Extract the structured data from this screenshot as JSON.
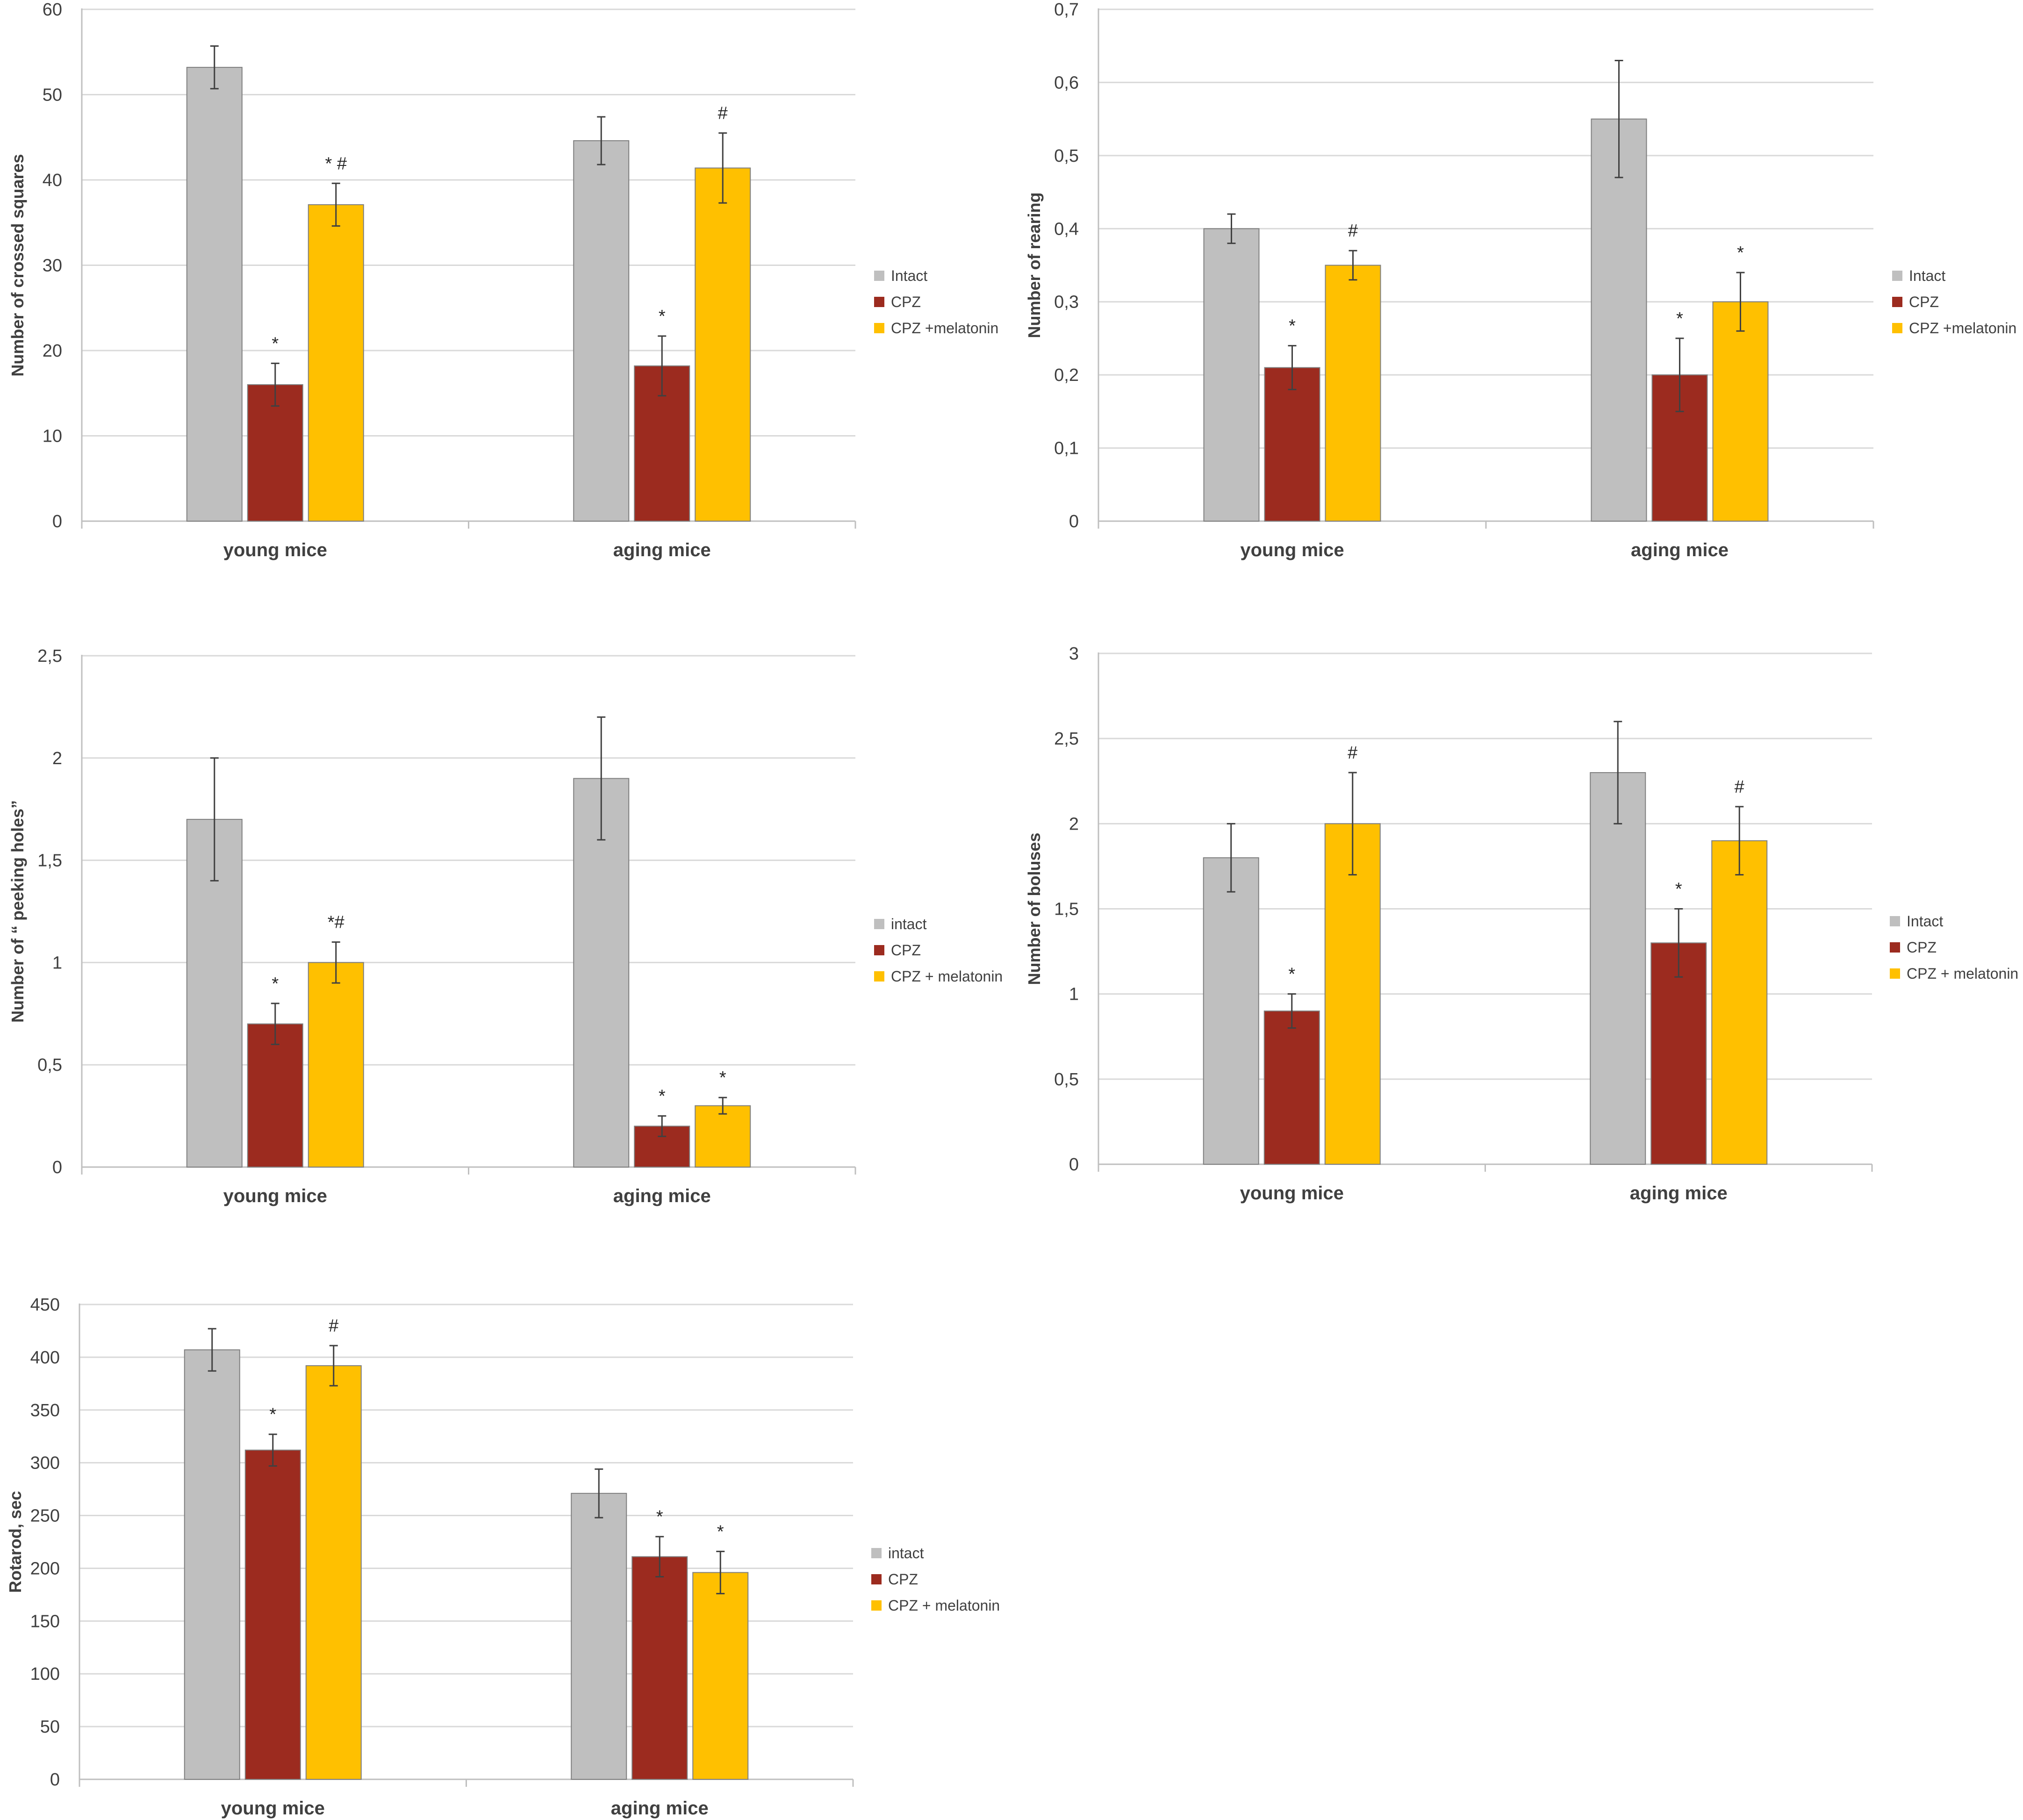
{
  "colors": {
    "intact": "#bfbfbf",
    "cpz": "#9c2b1f",
    "melatonin": "#ffc000",
    "grid": "#d9d9d9",
    "axis": "#bfbfbf",
    "bar_edge": "#7f7f7f",
    "error": "#404040"
  },
  "chart_data": [
    {
      "type": "bar",
      "ylabel": "Number of crossed squares",
      "ylim": [
        0,
        60
      ],
      "yticks": [
        "0",
        "10",
        "20",
        "30",
        "40",
        "50",
        "60"
      ],
      "categories": [
        "young mice",
        "aging mice"
      ],
      "legend_position": "right",
      "series": [
        {
          "name": "Intact",
          "color_key": "intact",
          "values": [
            53.2,
            44.6
          ],
          "errors": [
            2.5,
            2.8
          ],
          "labels": [
            "",
            ""
          ]
        },
        {
          "name": "CPZ",
          "color_key": "cpz",
          "values": [
            16.0,
            18.2
          ],
          "errors": [
            2.5,
            3.5
          ],
          "labels": [
            "*",
            "*"
          ]
        },
        {
          "name": "CPZ +melatonin",
          "color_key": "melatonin",
          "values": [
            37.1,
            41.4
          ],
          "errors": [
            2.5,
            4.1
          ],
          "labels": [
            "* #",
            "#"
          ]
        }
      ]
    },
    {
      "type": "bar",
      "ylabel": "Number of rearing",
      "ylim": [
        0,
        0.7
      ],
      "yticks": [
        "0",
        "0,1",
        "0,2",
        "0,3",
        "0,4",
        "0,5",
        "0,6",
        "0,7"
      ],
      "categories": [
        "young mice",
        "aging mice"
      ],
      "legend_position": "right",
      "series": [
        {
          "name": "Intact",
          "color_key": "intact",
          "values": [
            0.4,
            0.55
          ],
          "errors": [
            0.02,
            0.08
          ],
          "labels": [
            "",
            ""
          ]
        },
        {
          "name": "CPZ",
          "color_key": "cpz",
          "values": [
            0.21,
            0.2
          ],
          "errors": [
            0.03,
            0.05
          ],
          "labels": [
            "*",
            "*"
          ]
        },
        {
          "name": "CPZ +melatonin",
          "color_key": "melatonin",
          "values": [
            0.35,
            0.3
          ],
          "errors": [
            0.02,
            0.04
          ],
          "labels": [
            "#",
            "*"
          ]
        }
      ]
    },
    {
      "type": "bar",
      "ylabel": "Number of “ peeking holes”",
      "ylim": [
        0,
        2.5
      ],
      "yticks": [
        "0",
        "0,5",
        "1",
        "1,5",
        "2",
        "2,5"
      ],
      "categories": [
        "young mice",
        "aging mice"
      ],
      "legend_position": "right",
      "series": [
        {
          "name": "intact",
          "color_key": "intact",
          "values": [
            1.7,
            1.9
          ],
          "errors": [
            0.3,
            0.3
          ],
          "labels": [
            "",
            ""
          ]
        },
        {
          "name": "CPZ",
          "color_key": "cpz",
          "values": [
            0.7,
            0.2
          ],
          "errors": [
            0.1,
            0.05
          ],
          "labels": [
            "*",
            "*"
          ]
        },
        {
          "name": "CPZ + melatonin",
          "color_key": "melatonin",
          "values": [
            1.0,
            0.3
          ],
          "errors": [
            0.1,
            0.04
          ],
          "labels": [
            "*#",
            "*"
          ]
        }
      ]
    },
    {
      "type": "bar",
      "ylabel": "Number of boluses",
      "ylim": [
        0,
        3
      ],
      "yticks": [
        "0",
        "0,5",
        "1",
        "1,5",
        "2",
        "2,5",
        "3"
      ],
      "categories": [
        "young mice",
        "aging mice"
      ],
      "legend_position": "right",
      "series": [
        {
          "name": "Intact",
          "color_key": "intact",
          "values": [
            1.8,
            2.3
          ],
          "errors": [
            0.2,
            0.3
          ],
          "labels": [
            "",
            ""
          ]
        },
        {
          "name": "CPZ",
          "color_key": "cpz",
          "values": [
            0.9,
            1.3
          ],
          "errors": [
            0.1,
            0.2
          ],
          "labels": [
            "*",
            "*"
          ]
        },
        {
          "name": "CPZ + melatonin",
          "color_key": "melatonin",
          "values": [
            2.0,
            1.9
          ],
          "errors": [
            0.3,
            0.2
          ],
          "labels": [
            "#",
            "#"
          ]
        }
      ]
    },
    {
      "type": "bar",
      "ylabel": "Rotarod, sec",
      "ylim": [
        0,
        450
      ],
      "yticks": [
        "0",
        "50",
        "100",
        "150",
        "200",
        "250",
        "300",
        "350",
        "400",
        "450"
      ],
      "categories": [
        "young mice",
        "aging mice"
      ],
      "legend_position": "right",
      "series": [
        {
          "name": "intact",
          "color_key": "intact",
          "values": [
            407,
            271
          ],
          "errors": [
            20,
            23
          ],
          "labels": [
            "",
            ""
          ]
        },
        {
          "name": "CPZ",
          "color_key": "cpz",
          "values": [
            312,
            211
          ],
          "errors": [
            15,
            19
          ],
          "labels": [
            "*",
            "*"
          ]
        },
        {
          "name": "CPZ + melatonin",
          "color_key": "melatonin",
          "values": [
            392,
            196
          ],
          "errors": [
            19,
            20
          ],
          "labels": [
            "#",
            "*"
          ]
        }
      ]
    }
  ]
}
